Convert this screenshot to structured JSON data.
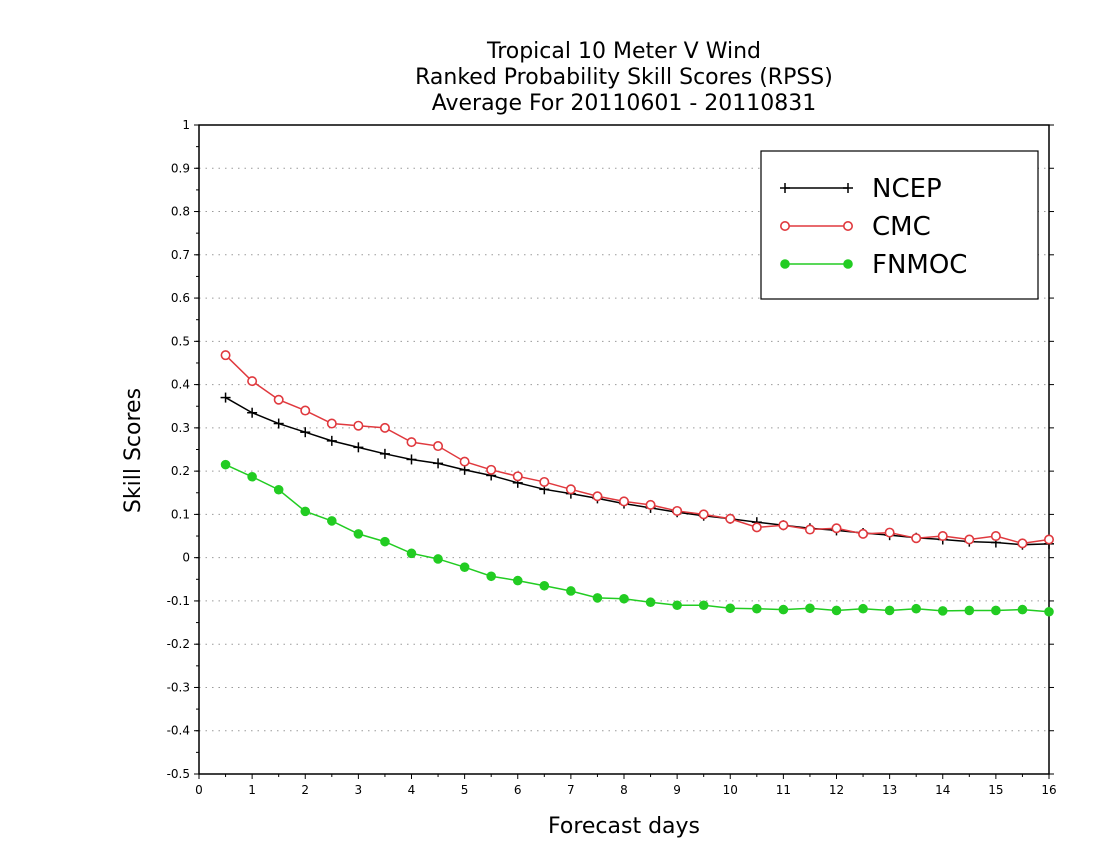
{
  "chart_data": {
    "type": "line",
    "title": [
      "Tropical 10 Meter V Wind",
      "Ranked Probability Skill Scores (RPSS)",
      "Average For 20110601 - 20110831"
    ],
    "xlabel": "Forecast days",
    "ylabel": "Skill Scores",
    "xlim": [
      0,
      16
    ],
    "ylim": [
      -0.5,
      1
    ],
    "xticks": [
      "0",
      "1",
      "2",
      "3",
      "4",
      "5",
      "6",
      "7",
      "8",
      "9",
      "10",
      "11",
      "12",
      "13",
      "14",
      "15",
      "16"
    ],
    "yticks": [
      "1",
      "0.9",
      "0.8",
      "0.7",
      "0.6",
      "0.5",
      "0.4",
      "0.3",
      "0.2",
      "0.1",
      "0",
      "-0.1",
      "-0.2",
      "-0.3",
      "-0.4",
      "-0.5"
    ],
    "grid": "horizontal-dotted",
    "legend_position": "top-right",
    "x": [
      0.5,
      1,
      1.5,
      2,
      2.5,
      3,
      3.5,
      4,
      4.5,
      5,
      5.5,
      6,
      6.5,
      7,
      7.5,
      8,
      8.5,
      9,
      9.5,
      10,
      10.5,
      11,
      11.5,
      12,
      12.5,
      13,
      13.5,
      14,
      14.5,
      15,
      15.5,
      16
    ],
    "series": [
      {
        "name": "NCEP",
        "color": "#000000",
        "marker": "plus",
        "values": [
          0.37,
          0.335,
          0.31,
          0.29,
          0.27,
          0.255,
          0.24,
          0.227,
          0.218,
          0.203,
          0.19,
          0.173,
          0.158,
          0.148,
          0.137,
          0.125,
          0.115,
          0.105,
          0.097,
          0.09,
          0.082,
          0.075,
          0.068,
          0.063,
          0.057,
          0.052,
          0.046,
          0.042,
          0.037,
          0.035,
          0.03,
          0.032
        ]
      },
      {
        "name": "CMC",
        "color": "#e0393e",
        "marker": "open-circle",
        "values": [
          0.468,
          0.408,
          0.365,
          0.34,
          0.31,
          0.305,
          0.3,
          0.267,
          0.258,
          0.222,
          0.203,
          0.188,
          0.175,
          0.158,
          0.142,
          0.13,
          0.122,
          0.108,
          0.1,
          0.09,
          0.07,
          0.075,
          0.065,
          0.068,
          0.055,
          0.058,
          0.045,
          0.05,
          0.042,
          0.05,
          0.033,
          0.042
        ]
      },
      {
        "name": "FNMOC",
        "color": "#22cc22",
        "marker": "filled-circle",
        "values": [
          0.215,
          0.187,
          0.157,
          0.107,
          0.085,
          0.055,
          0.037,
          0.01,
          -0.003,
          -0.022,
          -0.043,
          -0.053,
          -0.065,
          -0.077,
          -0.093,
          -0.095,
          -0.103,
          -0.11,
          -0.11,
          -0.117,
          -0.118,
          -0.12,
          -0.117,
          -0.122,
          -0.118,
          -0.122,
          -0.118,
          -0.123,
          -0.122,
          -0.122,
          -0.12,
          -0.125
        ]
      }
    ]
  }
}
